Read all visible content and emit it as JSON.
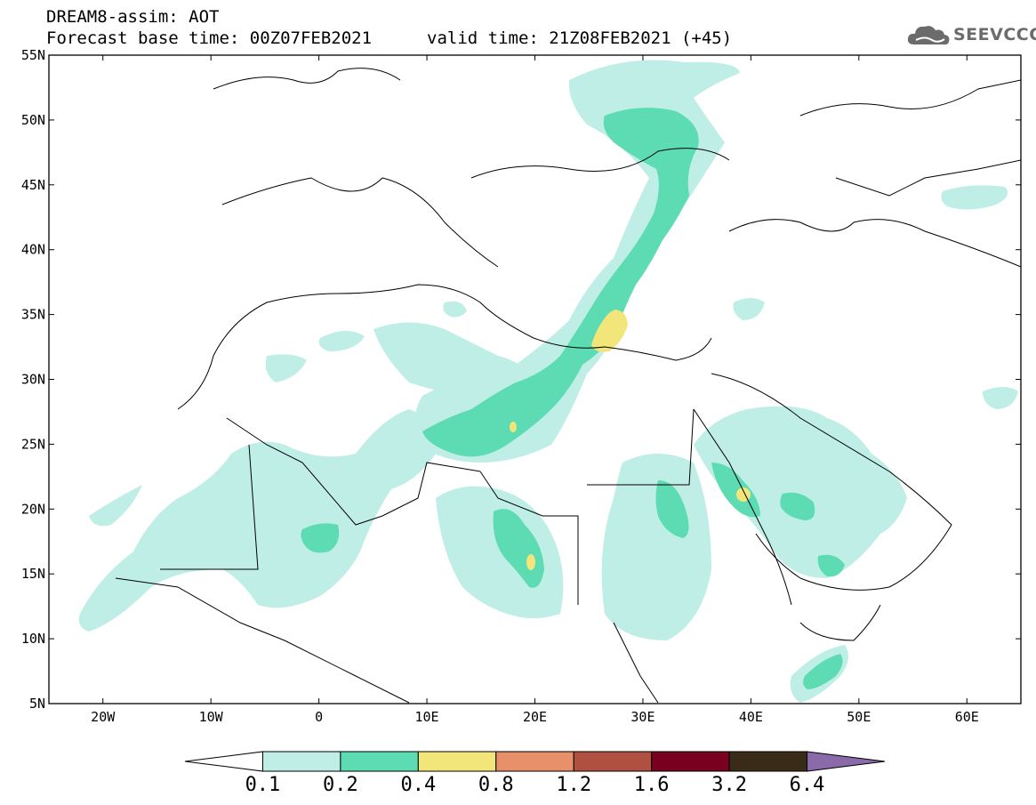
{
  "header": {
    "title": "DREAM8-assim: AOT",
    "base_time": "Forecast base time: 00Z07FEB2021",
    "valid_time": "valid time: 21Z08FEB2021 (+45)"
  },
  "logo": {
    "text": "SEEVCCC",
    "icon": "cloud-icon"
  },
  "map": {
    "lon_range": [
      -25,
      65
    ],
    "lat_range": [
      5,
      55
    ],
    "lat_labels": [
      "55N",
      "50N",
      "45N",
      "40N",
      "35N",
      "30N",
      "25N",
      "20N",
      "15N",
      "10N",
      "5N"
    ],
    "lon_labels": [
      "20W",
      "10W",
      "0",
      "10E",
      "20E",
      "30E",
      "40E",
      "50E",
      "60E"
    ]
  },
  "colorbar": {
    "labels": [
      "0.1",
      "0.2",
      "0.4",
      "0.8",
      "1.2",
      "1.6",
      "3.2",
      "6.4"
    ],
    "colors": [
      "#ffffff",
      "#bfeee6",
      "#5ddbb2",
      "#f2e67a",
      "#e8906a",
      "#b05040",
      "#7a0020",
      "#3a2a18",
      "#8a6aa8"
    ]
  }
}
